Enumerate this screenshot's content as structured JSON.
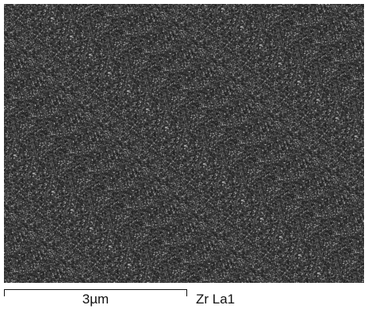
{
  "map": {
    "background_color": "#2a2a2a",
    "speckle_color": "#bfbfbf"
  },
  "scale_bar": {
    "label": "3µm"
  },
  "element_label": "Zr La1"
}
